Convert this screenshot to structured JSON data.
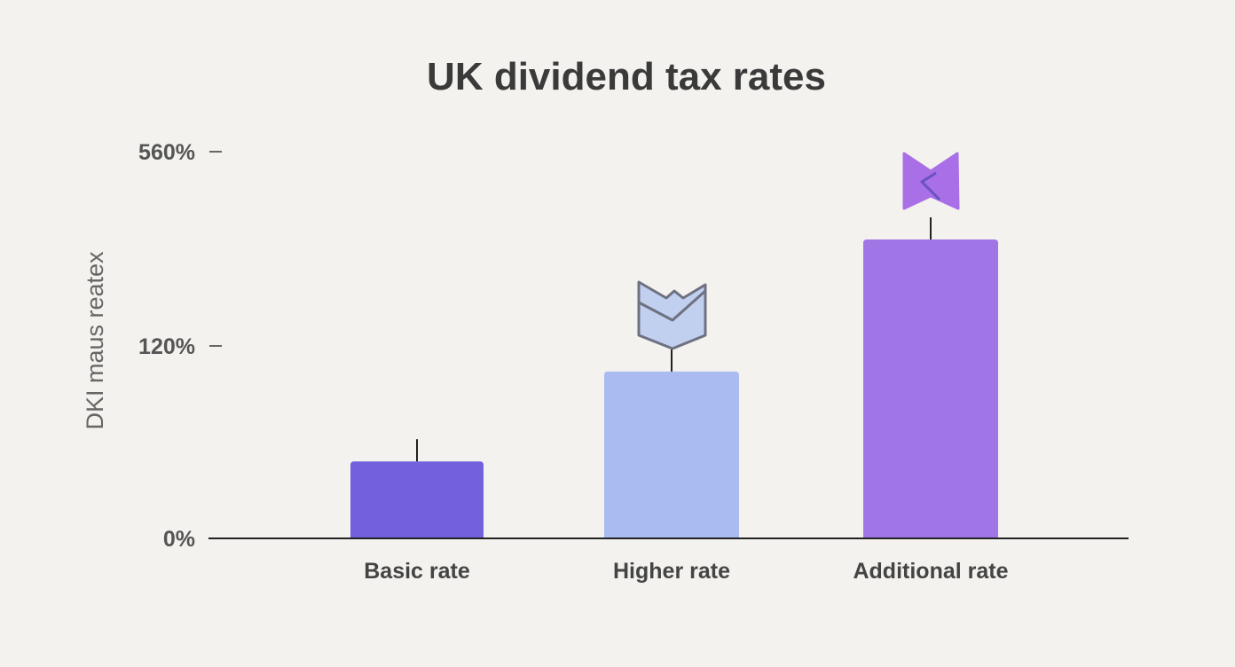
{
  "chart_data": {
    "type": "bar",
    "title": "UK dividend tax rates",
    "ylabel": "DKI maus reatex",
    "xlabel": "",
    "categories": [
      "Basic rate",
      "Higher rate",
      "Additional rate"
    ],
    "values": [
      48,
      104,
      361
    ],
    "y_ticks": [
      {
        "value": 0,
        "label": "0%"
      },
      {
        "value": 120,
        "label": "120%"
      },
      {
        "value": 560,
        "label": "560%"
      }
    ],
    "ylim": [
      0,
      560
    ],
    "grid": false,
    "colors": [
      "#7360dd",
      "#a9bbf0",
      "#a076e6"
    ],
    "icons": [
      "",
      "shield-chevron-icon",
      "bowtie-icon"
    ]
  }
}
